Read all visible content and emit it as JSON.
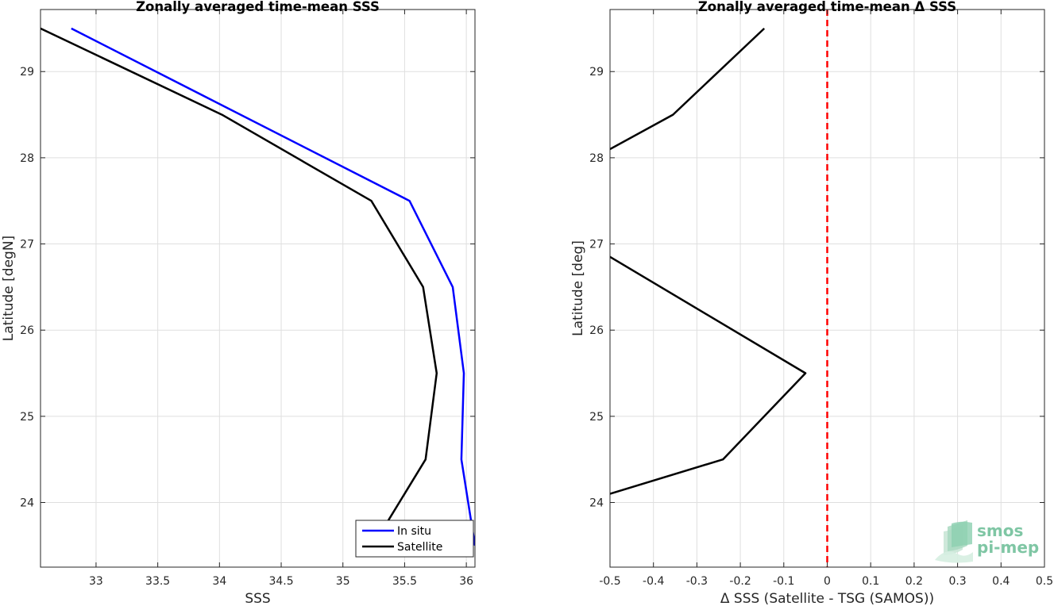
{
  "chart_data": [
    {
      "type": "line",
      "title": "Zonally averaged time-mean SSS",
      "xlabel": "SSS",
      "ylabel": "Latitude [degN]",
      "xlim": [
        32.55,
        36.07
      ],
      "ylim": [
        23.25,
        29.72
      ],
      "xticks": [
        33,
        33.5,
        34,
        34.5,
        35,
        35.5,
        36
      ],
      "xtick_labels": [
        "33",
        "33.5",
        "34",
        "34.5",
        "35",
        "35.5",
        "36"
      ],
      "yticks": [
        24,
        25,
        26,
        27,
        28,
        29
      ],
      "ytick_labels": [
        "24",
        "25",
        "26",
        "27",
        "28",
        "29"
      ],
      "grid": true,
      "legend_position": "bottom-right",
      "series": [
        {
          "name": "In situ",
          "color": "#0000ff",
          "x": [
            32.8,
            35.54,
            35.89,
            35.98,
            35.96,
            36.07
          ],
          "y": [
            29.5,
            27.5,
            26.5,
            25.5,
            24.5,
            23.5
          ]
        },
        {
          "name": "Satellite",
          "color": "#000000",
          "x": [
            32.55,
            34.02,
            35.23,
            35.65,
            35.76,
            35.67,
            35.35
          ],
          "y": [
            29.5,
            28.5,
            27.5,
            26.5,
            25.5,
            24.5,
            23.75
          ]
        }
      ]
    },
    {
      "type": "line",
      "title": "Zonally averaged time-mean Δ SSS",
      "xlabel": "Δ SSS (Satellite - TSG (SAMOS))",
      "ylabel": "Latitude [deg]",
      "xlim": [
        -0.5,
        0.5
      ],
      "ylim": [
        23.25,
        29.72
      ],
      "xticks": [
        -0.5,
        -0.4,
        -0.3,
        -0.2,
        -0.1,
        0,
        0.1,
        0.2,
        0.3,
        0.4,
        0.5
      ],
      "xtick_labels": [
        "-0.5",
        "-0.4",
        "-0.3",
        "-0.2",
        "-0.1",
        "0",
        "0.1",
        "0.2",
        "0.3",
        "0.4",
        "0.5"
      ],
      "yticks": [
        24,
        25,
        26,
        27,
        28,
        29
      ],
      "ytick_labels": [
        "24",
        "25",
        "26",
        "27",
        "28",
        "29"
      ],
      "grid": true,
      "reference_line": {
        "x": 0,
        "color": "#ff0000",
        "style": "dashed"
      },
      "series": [
        {
          "color": "#000000",
          "segments": [
            {
              "x": [
                -0.145,
                -0.355,
                -0.5
              ],
              "y": [
                29.5,
                28.5,
                28.1
              ]
            },
            {
              "x": [
                -0.5,
                -0.05,
                -0.24,
                -0.5
              ],
              "y": [
                26.85,
                25.5,
                24.5,
                24.1
              ]
            }
          ]
        }
      ]
    }
  ],
  "logo": {
    "line1": "smos",
    "line2": "pi-mep",
    "color": "#7fc6a4"
  }
}
